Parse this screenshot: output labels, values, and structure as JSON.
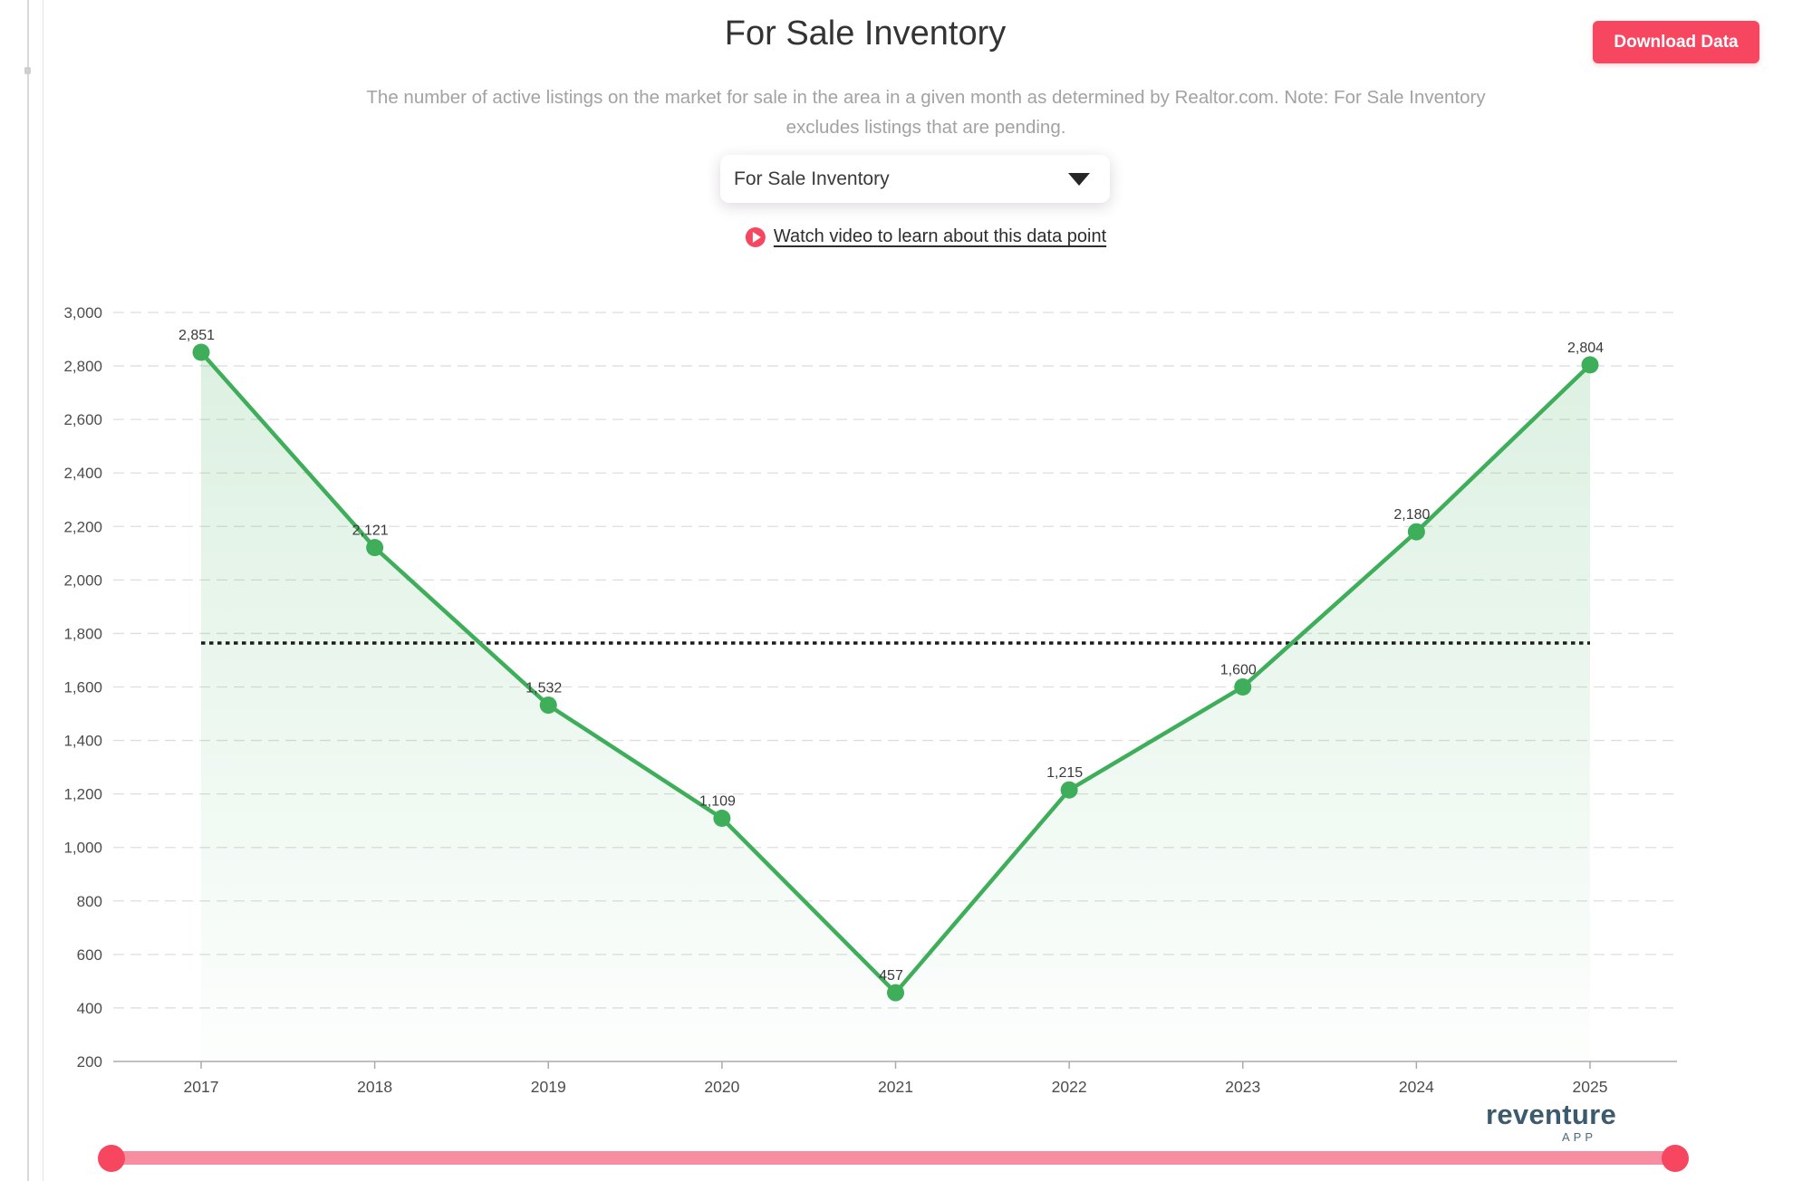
{
  "header": {
    "title": "For Sale Inventory",
    "subtitle": "The number of active listings on the market for sale in the area in a given month as determined by Realtor.com. Note: For Sale Inventory excludes listings that are pending.",
    "download_button_label": "Download Data",
    "dropdown_selected_value": "For Sale Inventory",
    "video_link_label": "Watch video to learn about this data point"
  },
  "branding": {
    "logo_text": "reventure",
    "logo_sub_text": "APP"
  },
  "colors": {
    "accent_pink": "#f74760",
    "slider_track_pink": "#f78da0",
    "line_green": "#3eae5b",
    "area_green_rgb": "62,174,91",
    "grid_gray": "#dedede",
    "axis_gray": "#ababab",
    "axis_label_color": "#4d4d4d",
    "value_label_color": "#3a3a3a",
    "reference_line_color": "#1c1c1c",
    "logo_color": "#3b5a6d"
  },
  "chart_data": {
    "type": "line",
    "title": "For Sale Inventory",
    "x": [
      "2017",
      "2018",
      "2019",
      "2020",
      "2021",
      "2022",
      "2023",
      "2024",
      "2025"
    ],
    "series": [
      {
        "name": "For Sale Inventory",
        "values": [
          2851,
          2121,
          1532,
          1109,
          457,
          1215,
          1600,
          2180,
          2804
        ]
      }
    ],
    "point_labels": [
      "2,851",
      "2,121",
      "1,532",
      "1,109",
      "457",
      "1,215",
      "1,600",
      "2,180",
      "2,804"
    ],
    "ylim": [
      200,
      3000
    ],
    "ytick_step": 200,
    "ytick_labels": [
      "200",
      "400",
      "600",
      "800",
      "1,000",
      "1,200",
      "1,400",
      "1,600",
      "1,800",
      "2,000",
      "2,200",
      "2,400",
      "2,600",
      "2,800",
      "3,000"
    ],
    "reference_line_value": 1764,
    "grid": true,
    "legend": "none",
    "area_fill": true
  },
  "slider": {
    "handle_positions": [
      0,
      1
    ]
  }
}
